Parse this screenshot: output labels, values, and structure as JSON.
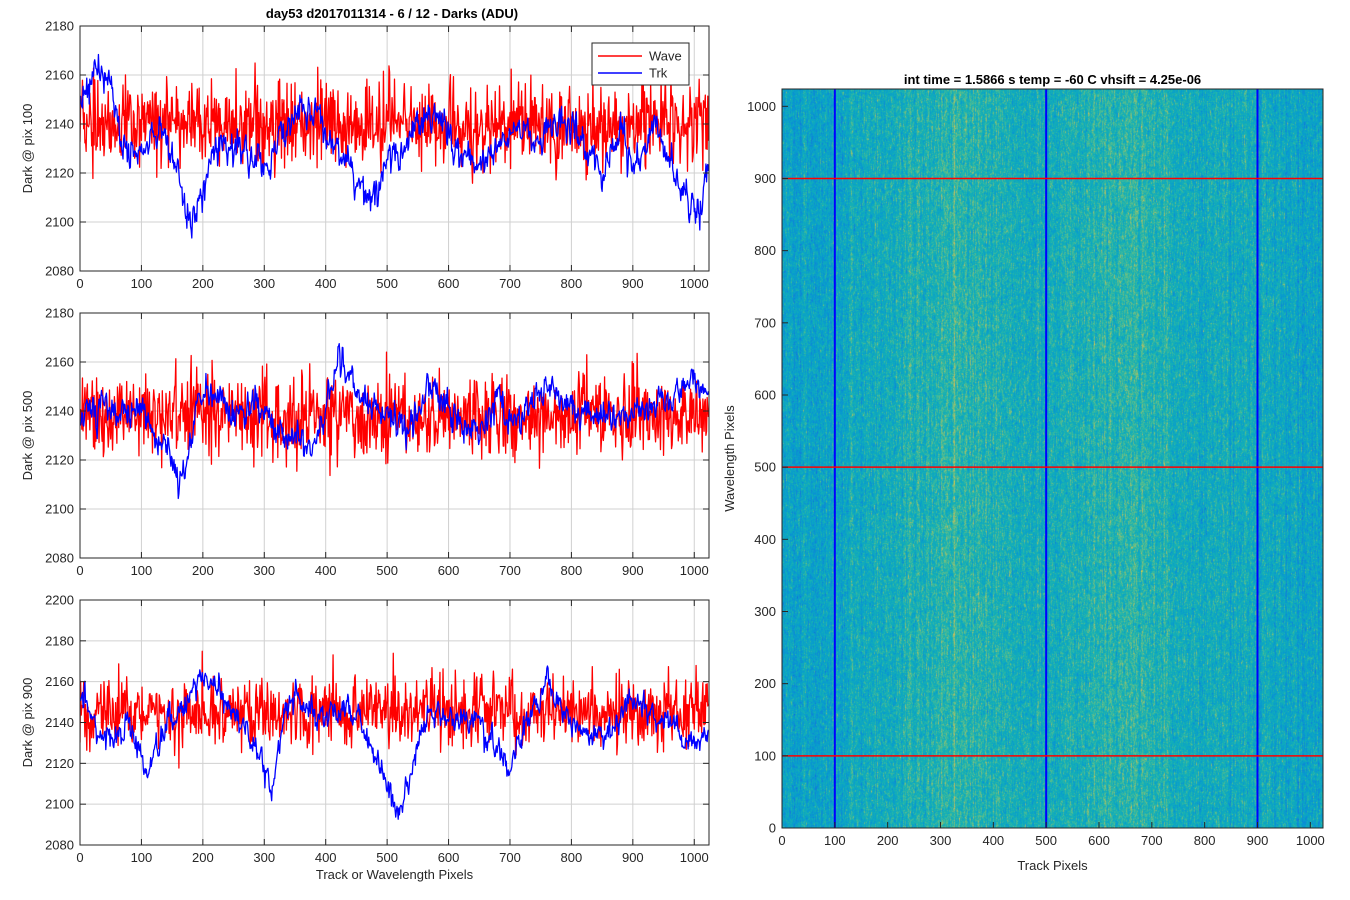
{
  "figure_title": "day53 d2017011314 - 6 / 12 - Darks (ADU)",
  "chart_data": [
    {
      "type": "line",
      "ylabel": "Dark @ pix 100",
      "xlabel": "",
      "xlim": [
        0,
        1024
      ],
      "ylim": [
        2080,
        2180
      ],
      "xticks": [
        0,
        100,
        200,
        300,
        400,
        500,
        600,
        700,
        800,
        900,
        1000
      ],
      "yticks": [
        2080,
        2100,
        2120,
        2140,
        2160,
        2180
      ],
      "grid": true,
      "legend": "top-right",
      "series": [
        {
          "name": "Wave",
          "color": "#ff0000",
          "mean": 2140,
          "noise": 10,
          "profile": [
            [
              0,
              2140
            ],
            [
              1024,
              2140
            ]
          ]
        },
        {
          "name": "Trk",
          "color": "#0000ff",
          "mean": 2135,
          "noise": 3,
          "profile": [
            [
              0,
              2150
            ],
            [
              30,
              2162
            ],
            [
              50,
              2155
            ],
            [
              70,
              2130
            ],
            [
              100,
              2128
            ],
            [
              130,
              2140
            ],
            [
              160,
              2118
            ],
            [
              180,
              2095
            ],
            [
              200,
              2115
            ],
            [
              230,
              2132
            ],
            [
              260,
              2130
            ],
            [
              300,
              2122
            ],
            [
              330,
              2135
            ],
            [
              360,
              2145
            ],
            [
              400,
              2140
            ],
            [
              420,
              2130
            ],
            [
              470,
              2108
            ],
            [
              500,
              2125
            ],
            [
              550,
              2140
            ],
            [
              580,
              2145
            ],
            [
              620,
              2130
            ],
            [
              650,
              2122
            ],
            [
              700,
              2135
            ],
            [
              720,
              2140
            ],
            [
              740,
              2130
            ],
            [
              770,
              2142
            ],
            [
              800,
              2138
            ],
            [
              850,
              2120
            ],
            [
              880,
              2140
            ],
            [
              900,
              2120
            ],
            [
              930,
              2140
            ],
            [
              960,
              2128
            ],
            [
              980,
              2110
            ],
            [
              1010,
              2105
            ],
            [
              1024,
              2130
            ]
          ]
        }
      ]
    },
    {
      "type": "line",
      "ylabel": "Dark @ pix 500",
      "xlabel": "",
      "xlim": [
        0,
        1024
      ],
      "ylim": [
        2080,
        2180
      ],
      "xticks": [
        0,
        100,
        200,
        300,
        400,
        500,
        600,
        700,
        800,
        900,
        1000
      ],
      "yticks": [
        2080,
        2100,
        2120,
        2140,
        2160,
        2180
      ],
      "grid": true,
      "series": [
        {
          "name": "Wave",
          "color": "#ff0000",
          "mean": 2138,
          "noise": 10,
          "profile": [
            [
              0,
              2138
            ],
            [
              1024,
              2138
            ]
          ]
        },
        {
          "name": "Trk",
          "color": "#0000ff",
          "mean": 2140,
          "noise": 3,
          "profile": [
            [
              0,
              2135
            ],
            [
              50,
              2145
            ],
            [
              100,
              2142
            ],
            [
              150,
              2115
            ],
            [
              170,
              2115
            ],
            [
              200,
              2150
            ],
            [
              240,
              2140
            ],
            [
              300,
              2140
            ],
            [
              340,
              2128
            ],
            [
              380,
              2125
            ],
            [
              420,
              2160
            ],
            [
              460,
              2145
            ],
            [
              500,
              2140
            ],
            [
              530,
              2130
            ],
            [
              570,
              2150
            ],
            [
              600,
              2140
            ],
            [
              650,
              2130
            ],
            [
              680,
              2145
            ],
            [
              700,
              2135
            ],
            [
              760,
              2150
            ],
            [
              800,
              2140
            ],
            [
              850,
              2138
            ],
            [
              900,
              2140
            ],
            [
              950,
              2145
            ],
            [
              1000,
              2155
            ],
            [
              1024,
              2150
            ]
          ]
        }
      ]
    },
    {
      "type": "line",
      "ylabel": "Dark @ pix 900",
      "xlabel": "Track or Wavelength Pixels",
      "xlim": [
        0,
        1024
      ],
      "ylim": [
        2080,
        2200
      ],
      "xticks": [
        0,
        100,
        200,
        300,
        400,
        500,
        600,
        700,
        800,
        900,
        1000
      ],
      "yticks": [
        2080,
        2100,
        2120,
        2140,
        2160,
        2180,
        2200
      ],
      "grid": true,
      "series": [
        {
          "name": "Wave",
          "color": "#ff0000",
          "mean": 2145,
          "noise": 10,
          "profile": [
            [
              0,
              2145
            ],
            [
              1024,
              2145
            ]
          ]
        },
        {
          "name": "Trk",
          "color": "#0000ff",
          "mean": 2140,
          "noise": 3,
          "profile": [
            [
              0,
              2155
            ],
            [
              40,
              2130
            ],
            [
              80,
              2140
            ],
            [
              110,
              2115
            ],
            [
              140,
              2135
            ],
            [
              200,
              2165
            ],
            [
              250,
              2145
            ],
            [
              300,
              2120
            ],
            [
              310,
              2108
            ],
            [
              340,
              2150
            ],
            [
              400,
              2145
            ],
            [
              460,
              2140
            ],
            [
              500,
              2108
            ],
            [
              520,
              2095
            ],
            [
              560,
              2140
            ],
            [
              600,
              2145
            ],
            [
              650,
              2140
            ],
            [
              700,
              2120
            ],
            [
              720,
              2135
            ],
            [
              760,
              2160
            ],
            [
              800,
              2140
            ],
            [
              850,
              2130
            ],
            [
              900,
              2150
            ],
            [
              950,
              2140
            ],
            [
              1000,
              2130
            ],
            [
              1024,
              2140
            ]
          ]
        }
      ]
    },
    {
      "type": "heatmap",
      "title": "int time = 1.5866 s    temp = -60 C    vhsift = 4.25e-06",
      "xlabel": "Track Pixels",
      "ylabel": "Wavelength Pixels",
      "xlim": [
        0,
        1024
      ],
      "ylim": [
        0,
        1024
      ],
      "xticks": [
        0,
        100,
        200,
        300,
        400,
        500,
        600,
        700,
        800,
        900,
        1000
      ],
      "yticks": [
        0,
        100,
        200,
        300,
        400,
        500,
        600,
        700,
        800,
        900,
        1000
      ],
      "grid": false,
      "vertical_lines": {
        "positions": [
          100,
          500,
          900
        ],
        "color": "#0000ff"
      },
      "horizontal_lines": {
        "positions": [
          100,
          500,
          900
        ],
        "color": "#ff0000"
      }
    }
  ]
}
